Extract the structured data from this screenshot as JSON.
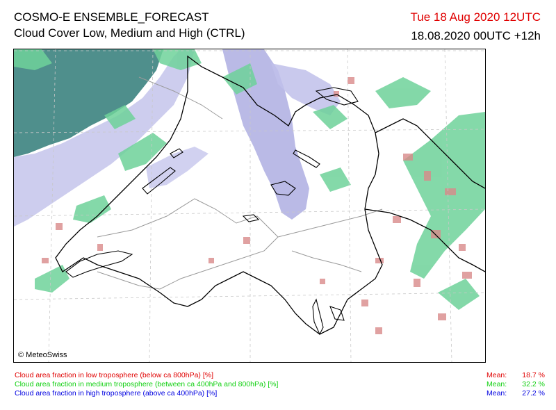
{
  "header": {
    "title": "COSMO-E ENSEMBLE_FORECAST",
    "subtitle": "Cloud Cover Low, Medium and High (CTRL)",
    "valid_time": "Tue 18 Aug 2020 12UTC",
    "run_info": "18.08.2020 00UTC +12h"
  },
  "map": {
    "credit": "© MeteoSwiss",
    "colors": {
      "low": "#d98a8a",
      "medium": "#6ed29a",
      "high": "#b8b8e6",
      "dense_overlap": "#4f8f8c",
      "borders": "#000000",
      "lakes": "#000000",
      "cantonal_lines": "#9a9a9a",
      "grid": "#c8c8c8"
    }
  },
  "legend": [
    {
      "text": "Cloud area fraction in low troposphere (below ca 800hPa) [%]",
      "mean_label": "Mean:",
      "mean_value": "18.7 %",
      "color": "#e00000"
    },
    {
      "text": "Cloud area fraction in medium troposphere (between ca 400hPa and 800hPa) [%]",
      "mean_label": "Mean:",
      "mean_value": "32.2 %",
      "color": "#10d010"
    },
    {
      "text": "Cloud area fraction in high troposphere (above ca 400hPa) [%]",
      "mean_label": "Mean:",
      "mean_value": "27.2 %",
      "color": "#0000e0"
    }
  ]
}
